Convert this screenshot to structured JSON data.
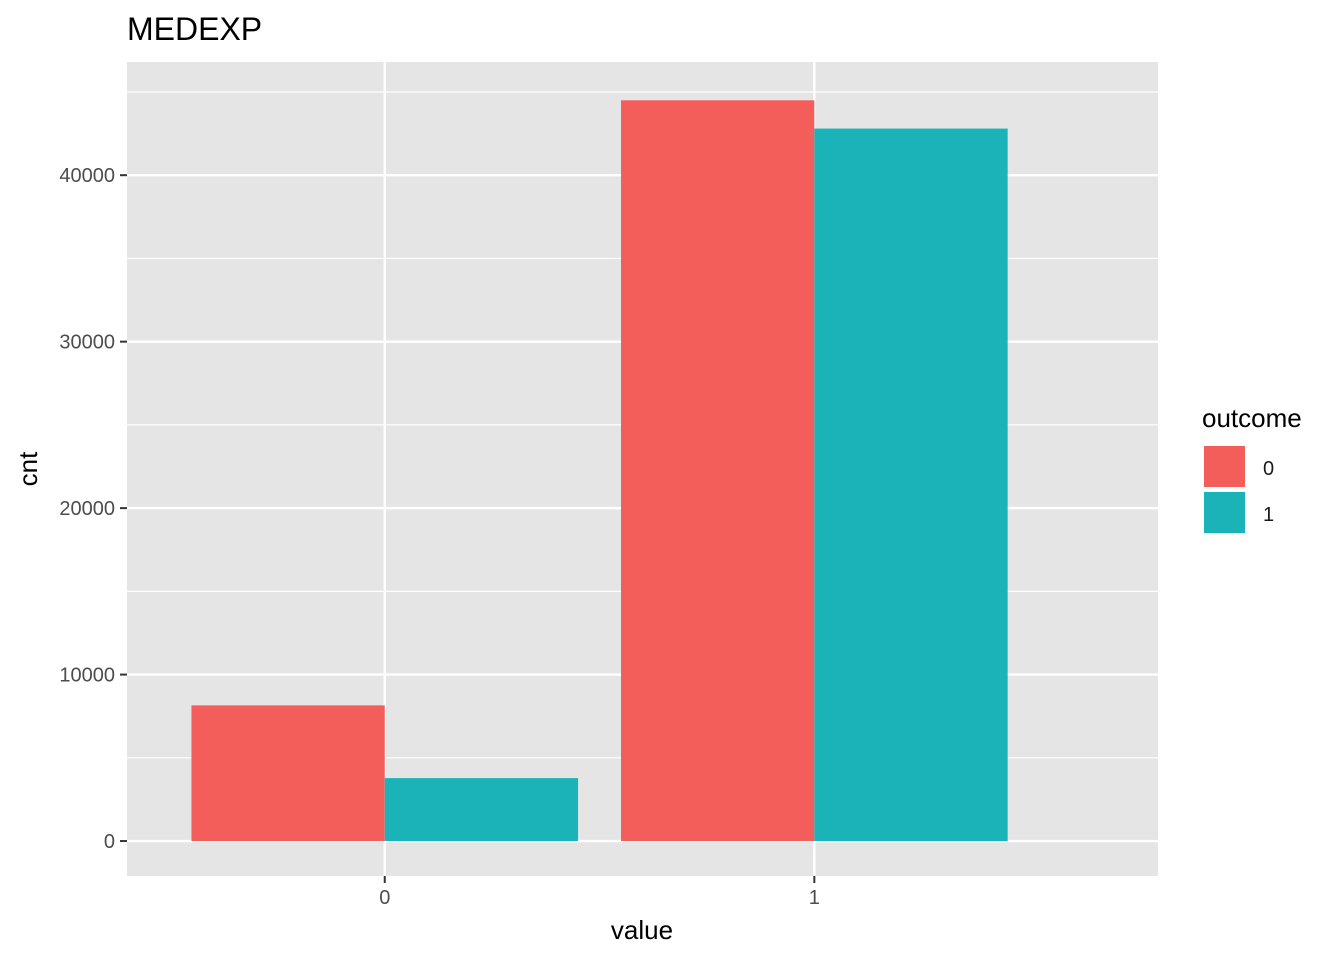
{
  "chart_data": {
    "type": "bar",
    "title": "MEDEXP",
    "xlabel": "value",
    "ylabel": "cnt",
    "categories": [
      "0",
      "1"
    ],
    "series": [
      {
        "name": "0",
        "color": "#F35E5A",
        "values": [
          8150,
          44500
        ]
      },
      {
        "name": "1",
        "color": "#19B3B8",
        "values": [
          3780,
          42800
        ]
      }
    ],
    "y_ticks": [
      0,
      10000,
      20000,
      30000,
      40000
    ],
    "y_tick_labels": [
      "0",
      "10000",
      "20000",
      "30000",
      "40000"
    ],
    "ylim": [
      -2100,
      46800
    ],
    "grid": true,
    "panel_background": "#E5E5E5",
    "legend": {
      "title": "outcome",
      "position": "right",
      "labels": [
        "0",
        "1"
      ]
    }
  }
}
